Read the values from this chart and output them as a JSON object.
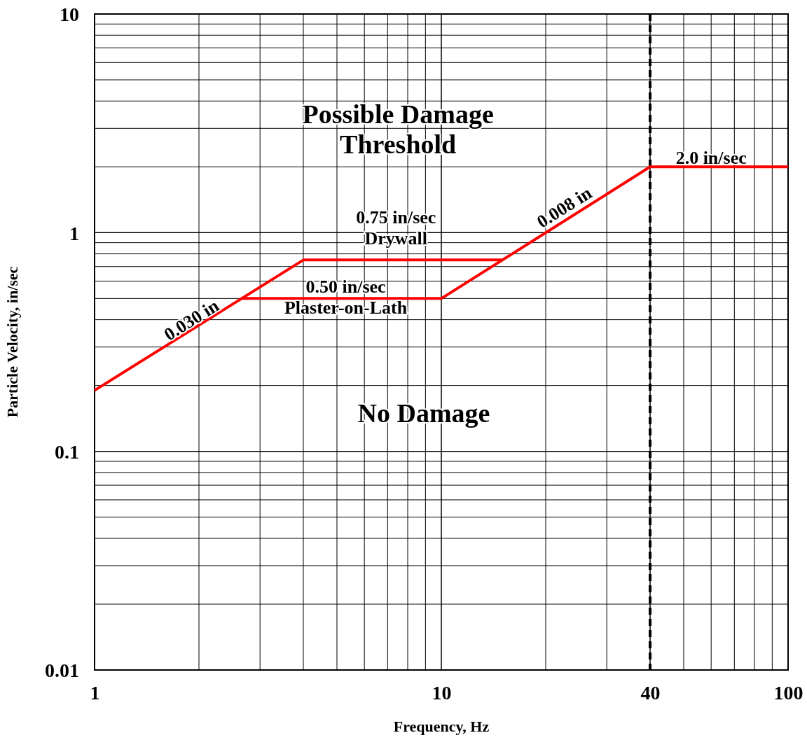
{
  "chart_data": {
    "type": "line",
    "xlabel": "Frequency, Hz",
    "ylabel": "Particle Velocity, in/sec",
    "log": "xy",
    "grid": true,
    "marker": "none",
    "line_style": "solid",
    "xlim": [
      1,
      100
    ],
    "ylim": [
      0.01,
      10
    ],
    "xticks": [
      1,
      {
        "value": 2,
        "label": null
      },
      {
        "value": 3,
        "label": null
      },
      {
        "value": 4,
        "label": null
      },
      {
        "value": 5,
        "label": null
      },
      {
        "value": 6,
        "label": null
      },
      {
        "value": 7,
        "label": null
      },
      {
        "value": 8,
        "label": null
      },
      {
        "value": 9,
        "label": null
      },
      10,
      {
        "value": 20,
        "label": null
      },
      {
        "value": 30,
        "label": null
      },
      40,
      {
        "value": 50,
        "label": null
      },
      {
        "value": 60,
        "label": null
      },
      {
        "value": 70,
        "label": null
      },
      {
        "value": 80,
        "label": null
      },
      {
        "value": 90,
        "label": null
      },
      100
    ],
    "yticks": [
      0.01,
      {
        "value": 0.02,
        "label": null
      },
      {
        "value": 0.03,
        "label": null
      },
      {
        "value": 0.04,
        "label": null
      },
      {
        "value": 0.05,
        "label": null
      },
      {
        "value": 0.06,
        "label": null
      },
      {
        "value": 0.07,
        "label": null
      },
      {
        "value": 0.08,
        "label": null
      },
      {
        "value": 0.09,
        "label": null
      },
      0.1,
      {
        "value": 0.2,
        "label": null
      },
      {
        "value": 0.3,
        "label": null
      },
      {
        "value": 0.4,
        "label": null
      },
      {
        "value": 0.5,
        "label": null
      },
      {
        "value": 0.6,
        "label": null
      },
      {
        "value": 0.7,
        "label": null
      },
      {
        "value": 0.8,
        "label": null
      },
      {
        "value": 0.9,
        "label": null
      },
      1,
      {
        "value": 2,
        "label": null
      },
      {
        "value": 3,
        "label": null
      },
      {
        "value": 4,
        "label": null
      },
      {
        "value": 5,
        "label": null
      },
      {
        "value": 6,
        "label": null
      },
      {
        "value": 7,
        "label": null
      },
      {
        "value": 8,
        "label": null
      },
      {
        "value": 9,
        "label": null
      },
      10
    ],
    "series": [
      {
        "color": "#ff0000",
        "x": [
          1,
          4,
          15,
          40,
          100
        ],
        "values": [
          0.19,
          0.75,
          0.75,
          2,
          2
        ]
      },
      {
        "color": "#ff0000",
        "x": [
          2.65,
          10,
          15
        ],
        "values": [
          0.5,
          0.5,
          0.75
        ]
      }
    ],
    "ref_lines": [
      {
        "axis": "x",
        "value": 40,
        "color": "#000000",
        "line_style": "dashed"
      }
    ],
    "annotations": [
      "Possible Damage\nThreshold",
      "No Damage",
      "0.75 in/sec\nDrywall",
      "0.50 in/sec\nPlaster-on-Lath",
      "0.030 in",
      "0.008 in",
      "2.0 in/sec"
    ]
  }
}
